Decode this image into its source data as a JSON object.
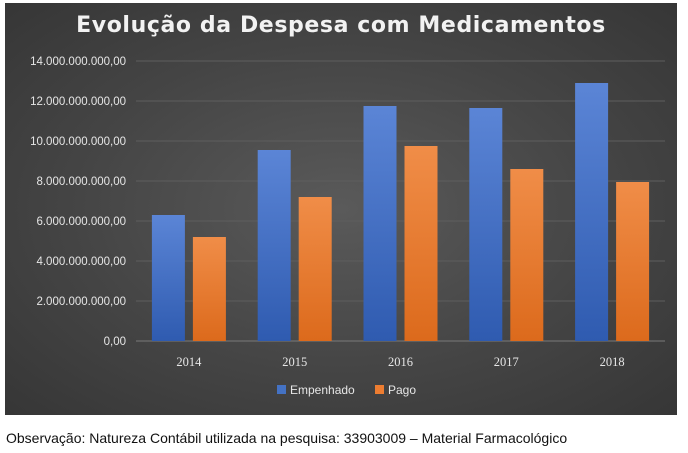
{
  "chart_data": {
    "type": "bar",
    "title": "Evolução da Despesa com Medicamentos",
    "categories": [
      "2014",
      "2015",
      "2016",
      "2017",
      "2018"
    ],
    "series": [
      {
        "name": "Empenhado",
        "color": "#4472C4",
        "values": [
          6300000000,
          9550000000,
          11750000000,
          11650000000,
          12900000000
        ]
      },
      {
        "name": "Pago",
        "color": "#ED7D31",
        "values": [
          5200000000,
          7200000000,
          9750000000,
          8600000000,
          7950000000
        ]
      }
    ],
    "ylim": [
      0,
      14000000000
    ],
    "yticks": [
      0,
      2000000000,
      4000000000,
      6000000000,
      8000000000,
      10000000000,
      12000000000,
      14000000000
    ],
    "ytick_labels": [
      "0,00",
      "2.000.000.000,00",
      "4.000.000.000,00",
      "6.000.000.000,00",
      "8.000.000.000,00",
      "10.000.000.000,00",
      "12.000.000.000,00",
      "14.000.000.000,00"
    ],
    "grid": true,
    "legend_position": "bottom",
    "background": "#404040"
  },
  "footnote": "Observação: Natureza Contábil utilizada na pesquisa: 33903009 – Material Farmacológico"
}
